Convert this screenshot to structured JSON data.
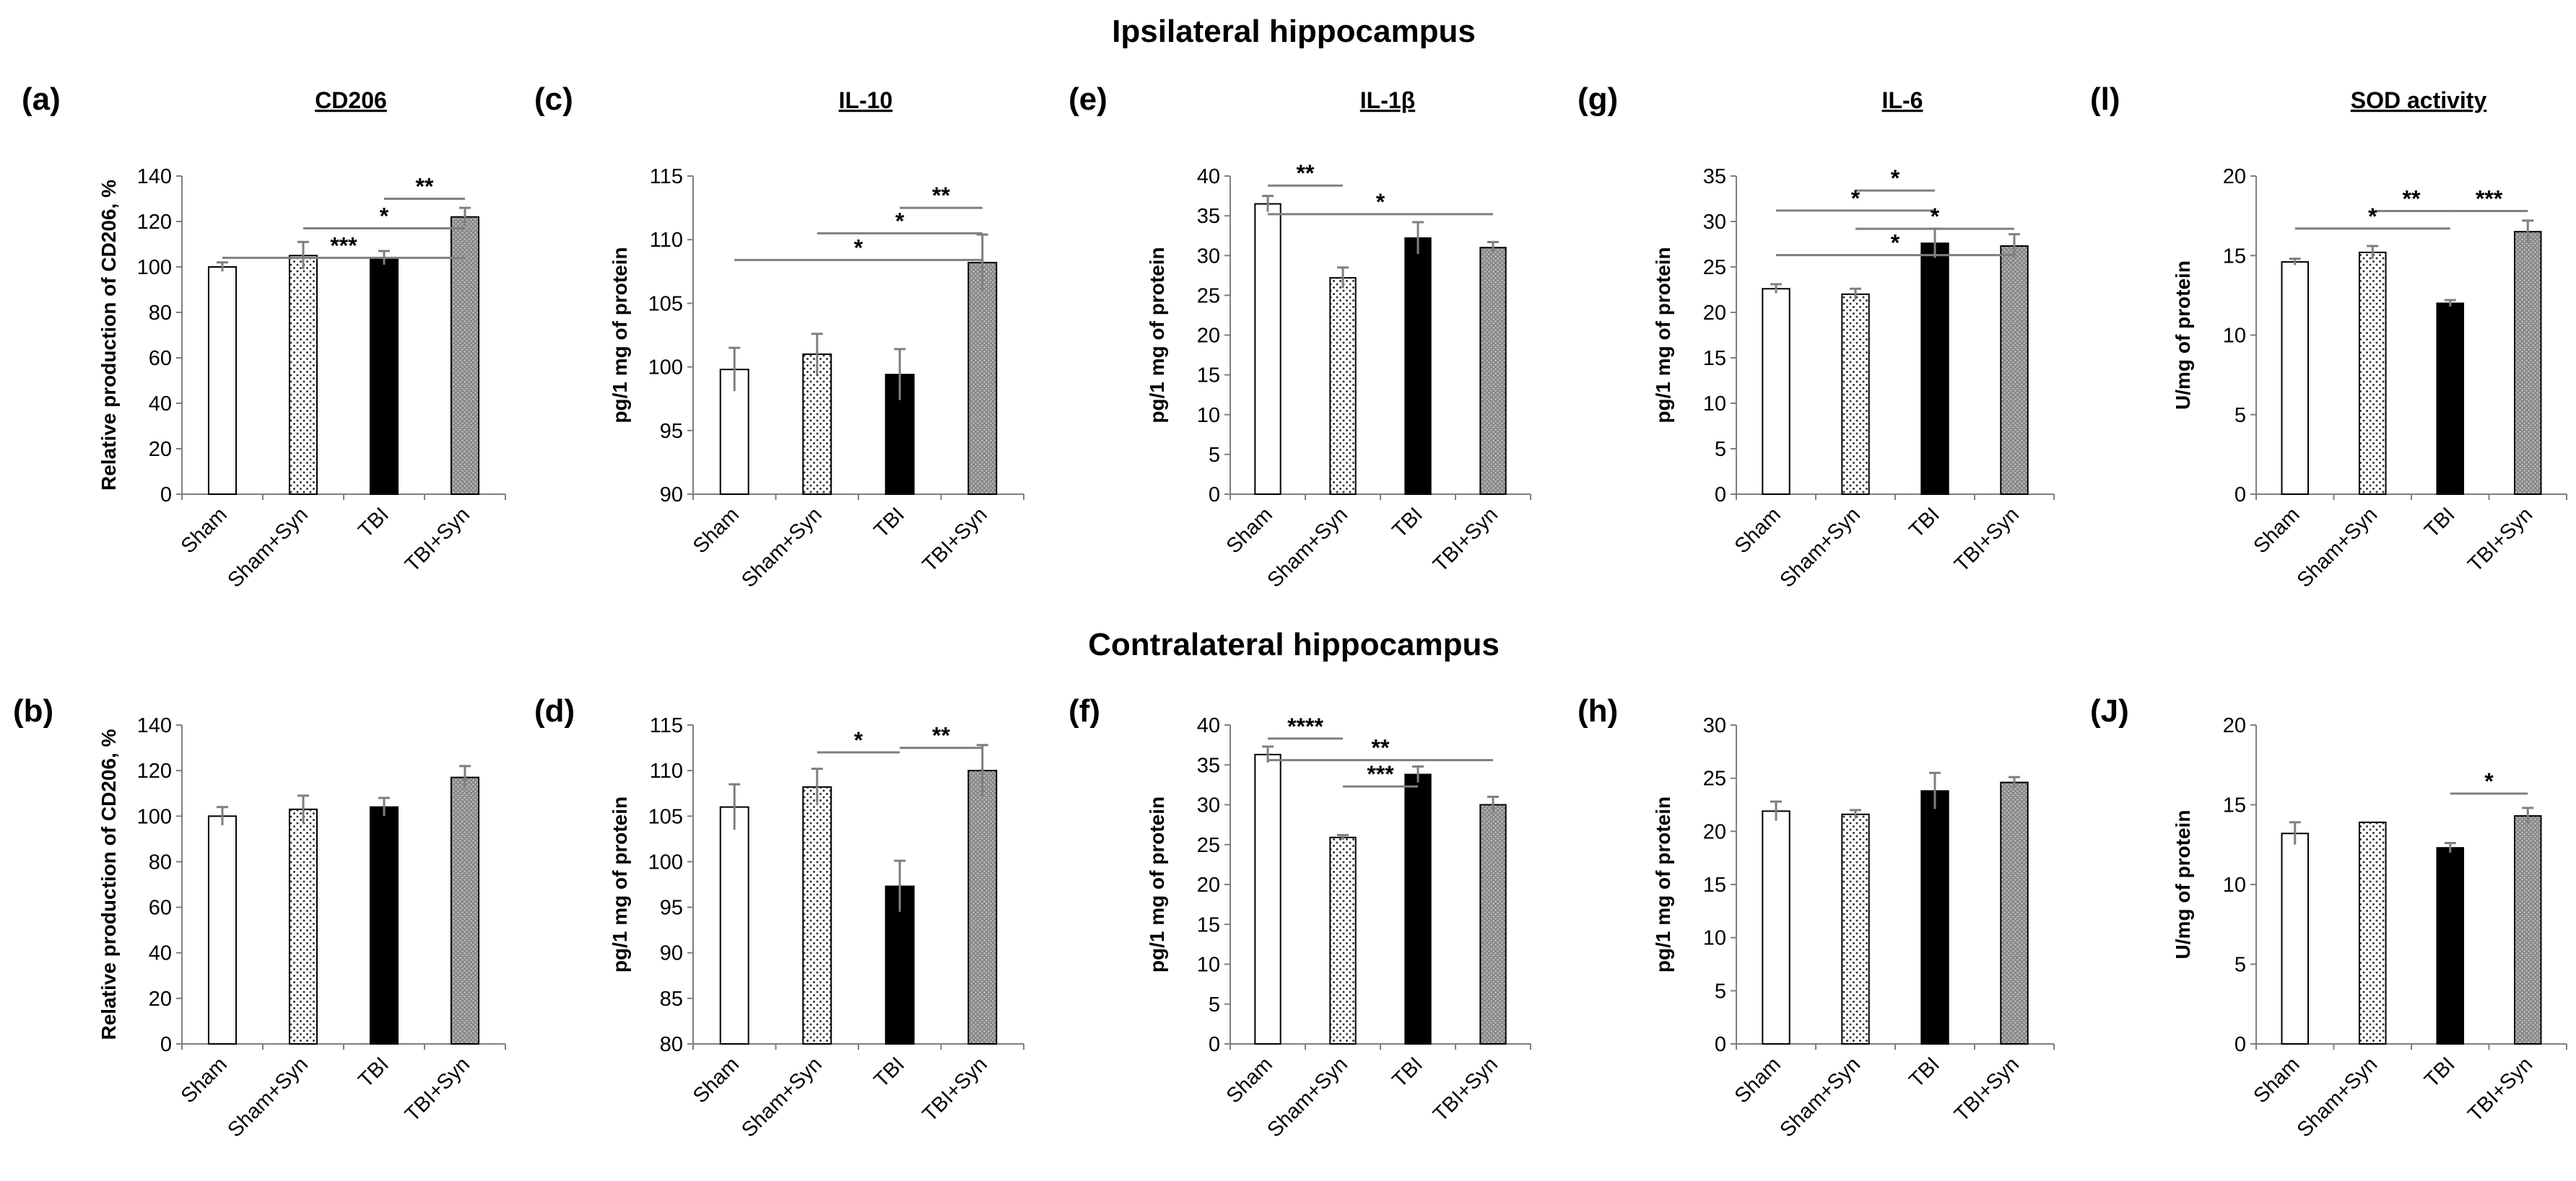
{
  "figure": {
    "section_top": "Ipsilateral hippocampus",
    "section_bottom": "Contralateral hippocampus"
  },
  "colors": {
    "sham": "#ffffff",
    "sham_syn": "#ffffff",
    "tbi": "#000000",
    "tbi_syn": "#8a8a8a",
    "axis": "#7f7f7f",
    "error": "#7f7f7f"
  },
  "chart_data": [
    {
      "id": "a",
      "type": "bar",
      "panel_label": "(a)",
      "title": "CD206",
      "ylabel": "Relative production of CD206, %",
      "ylim": [
        0,
        140
      ],
      "yticks": [
        0,
        20,
        40,
        60,
        80,
        100,
        120,
        140
      ],
      "categories": [
        "Sham",
        "Sham+Syn",
        "TBI",
        "TBI+Syn"
      ],
      "values": [
        100,
        105,
        104,
        122
      ],
      "errors": [
        2,
        6,
        3,
        4
      ],
      "significance": [
        {
          "from": 2,
          "to": 3,
          "label": "**",
          "y": 130
        },
        {
          "from": 1,
          "to": 3,
          "label": "*",
          "y": 117
        },
        {
          "from": 0,
          "to": 3,
          "label": "***",
          "y": 104
        }
      ]
    },
    {
      "id": "c",
      "type": "bar",
      "panel_label": "(c)",
      "title": "IL-10",
      "ylabel": "pg/1 mg of protein",
      "ylim": [
        90,
        115
      ],
      "yticks": [
        90,
        95,
        100,
        105,
        110,
        115
      ],
      "categories": [
        "Sham",
        "Sham+Syn",
        "TBI",
        "TBI+Syn"
      ],
      "values": [
        99.8,
        101,
        99.4,
        108.2
      ],
      "errors": [
        1.7,
        1.6,
        2,
        2.2
      ],
      "significance": [
        {
          "from": 2,
          "to": 3,
          "label": "**",
          "y": 112.5
        },
        {
          "from": 1,
          "to": 3,
          "label": "*",
          "y": 110.5
        },
        {
          "from": 0,
          "to": 3,
          "label": "*",
          "y": 108.4
        }
      ]
    },
    {
      "id": "e",
      "type": "bar",
      "panel_label": "(e)",
      "title": "IL-1β",
      "ylabel": "pg/1 mg of protein",
      "ylim": [
        0,
        40
      ],
      "yticks": [
        0,
        5,
        10,
        15,
        20,
        25,
        30,
        35,
        40
      ],
      "categories": [
        "Sham",
        "Sham+Syn",
        "TBI",
        "TBI+Syn"
      ],
      "values": [
        36.5,
        27.2,
        32.2,
        31
      ],
      "errors": [
        1,
        1.3,
        2,
        0.7
      ],
      "significance": [
        {
          "from": 0,
          "to": 1,
          "label": "**",
          "y": 38.8
        },
        {
          "from": 0,
          "to": 3,
          "label": "*",
          "y": 35.2
        }
      ]
    },
    {
      "id": "g",
      "type": "bar",
      "panel_label": "(g)",
      "title": "IL-6",
      "ylabel": "pg/1 mg of protein",
      "ylim": [
        0,
        35
      ],
      "yticks": [
        0,
        5,
        10,
        15,
        20,
        25,
        30,
        35
      ],
      "categories": [
        "Sham",
        "Sham+Syn",
        "TBI",
        "TBI+Syn"
      ],
      "values": [
        22.6,
        22,
        27.6,
        27.3
      ],
      "errors": [
        0.5,
        0.6,
        1.6,
        1.3
      ],
      "significance": [
        {
          "from": 1,
          "to": 2,
          "label": "*",
          "y": 33.4
        },
        {
          "from": 0,
          "to": 2,
          "label": "*",
          "y": 31.2
        },
        {
          "from": 1,
          "to": 3,
          "label": "*",
          "y": 29.2
        },
        {
          "from": 0,
          "to": 3,
          "label": "*",
          "y": 26.3
        }
      ]
    },
    {
      "id": "l",
      "type": "bar",
      "panel_label": "(l)",
      "title": "SOD activity",
      "ylabel": "U/mg of protein",
      "ylim": [
        0,
        20
      ],
      "yticks": [
        0,
        5,
        10,
        15,
        20
      ],
      "categories": [
        "Sham",
        "Sham+Syn",
        "TBI",
        "TBI+Syn"
      ],
      "values": [
        14.6,
        15.2,
        12,
        16.5
      ],
      "errors": [
        0.2,
        0.4,
        0.2,
        0.7
      ],
      "significance": [
        {
          "from": 1,
          "to": 2,
          "label": "**",
          "y": 17.8
        },
        {
          "from": 2,
          "to": 3,
          "label": "***",
          "y": 17.8
        },
        {
          "from": 0,
          "to": 2,
          "label": "*",
          "y": 16.7
        }
      ]
    },
    {
      "id": "b",
      "type": "bar",
      "panel_label": "(b)",
      "title": "",
      "ylabel": "Relative production of CD206, %",
      "ylim": [
        0,
        140
      ],
      "yticks": [
        0,
        20,
        40,
        60,
        80,
        100,
        120,
        140
      ],
      "categories": [
        "Sham",
        "Sham+Syn",
        "TBI",
        "TBI+Syn"
      ],
      "values": [
        100,
        103,
        104,
        117
      ],
      "errors": [
        4,
        6,
        4,
        5
      ],
      "significance": []
    },
    {
      "id": "d",
      "type": "bar",
      "panel_label": "(d)",
      "title": "",
      "ylabel": "pg/1 mg of protein",
      "ylim": [
        80,
        115
      ],
      "yticks": [
        80,
        85,
        90,
        95,
        100,
        105,
        110,
        115
      ],
      "categories": [
        "Sham",
        "Sham+Syn",
        "TBI",
        "TBI+Syn"
      ],
      "values": [
        106,
        108.2,
        97.3,
        110
      ],
      "errors": [
        2.5,
        2,
        2.8,
        2.8
      ],
      "significance": [
        {
          "from": 1,
          "to": 2,
          "label": "*",
          "y": 112
        },
        {
          "from": 2,
          "to": 3,
          "label": "**",
          "y": 112.5
        }
      ]
    },
    {
      "id": "f",
      "type": "bar",
      "panel_label": "(f)",
      "title": "",
      "ylabel": "pg/1 mg of protein",
      "ylim": [
        0,
        40
      ],
      "yticks": [
        0,
        5,
        10,
        15,
        20,
        25,
        30,
        35,
        40
      ],
      "categories": [
        "Sham",
        "Sham+Syn",
        "TBI",
        "TBI+Syn"
      ],
      "values": [
        36.3,
        25.9,
        33.8,
        30
      ],
      "errors": [
        1,
        0.3,
        1,
        1
      ],
      "significance": [
        {
          "from": 0,
          "to": 1,
          "label": "****",
          "y": 38.3
        },
        {
          "from": 0,
          "to": 3,
          "label": "**",
          "y": 35.6
        },
        {
          "from": 1,
          "to": 2,
          "label": "***",
          "y": 32.3
        }
      ]
    },
    {
      "id": "h",
      "type": "bar",
      "panel_label": "(h)",
      "title": "",
      "ylabel": "pg/1 mg of protein",
      "ylim": [
        0,
        30
      ],
      "yticks": [
        0,
        5,
        10,
        15,
        20,
        25,
        30
      ],
      "categories": [
        "Sham",
        "Sham+Syn",
        "TBI",
        "TBI+Syn"
      ],
      "values": [
        21.9,
        21.6,
        23.8,
        24.6
      ],
      "errors": [
        0.9,
        0.4,
        1.7,
        0.5
      ],
      "significance": []
    },
    {
      "id": "j",
      "type": "bar",
      "panel_label": "(J)",
      "title": "",
      "ylabel": "U/mg of protein",
      "ylim": [
        0,
        20
      ],
      "yticks": [
        0,
        5,
        10,
        15,
        20
      ],
      "categories": [
        "Sham",
        "Sham+Syn",
        "TBI",
        "TBI+Syn"
      ],
      "values": [
        13.2,
        13.9,
        12.3,
        14.3
      ],
      "errors": [
        0.7,
        0,
        0.3,
        0.5
      ],
      "significance": [
        {
          "from": 2,
          "to": 3,
          "label": "*",
          "y": 15.7
        }
      ]
    }
  ]
}
